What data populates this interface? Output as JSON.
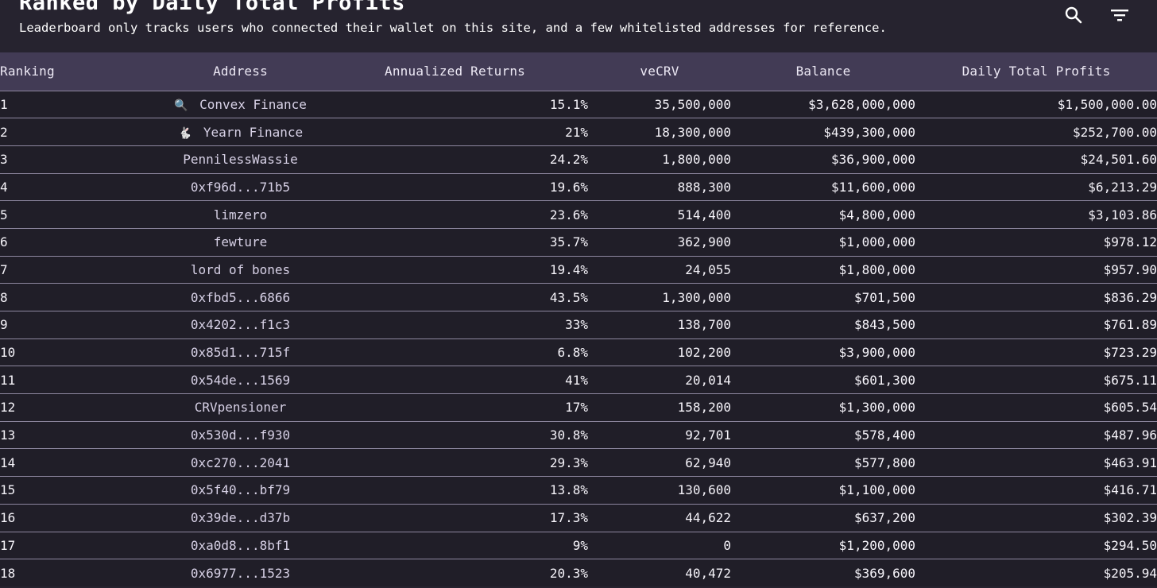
{
  "header": {
    "title": "Ranked by Daily Total Profits",
    "subtitle": "Leaderboard only tracks users who connected their wallet on this site, and a few whitelisted addresses for reference.",
    "search_icon": "search-icon",
    "filter_icon": "filter-icon"
  },
  "table": {
    "columns": [
      "Ranking",
      "Address",
      "Annualized Returns",
      "veCRV",
      "Balance",
      "Daily Total Profits"
    ],
    "rows": [
      {
        "rank": "1",
        "icon": "🔍",
        "address": "Convex Finance",
        "returns": "15.1%",
        "vecrv": "35,500,000",
        "balance": "$3,628,000,000",
        "profits": "$1,500,000.00"
      },
      {
        "rank": "2",
        "icon": "🐇",
        "address": "Yearn Finance",
        "returns": "21%",
        "vecrv": "18,300,000",
        "balance": "$439,300,000",
        "profits": "$252,700.00"
      },
      {
        "rank": "3",
        "icon": "",
        "address": "PennilessWassie",
        "returns": "24.2%",
        "vecrv": "1,800,000",
        "balance": "$36,900,000",
        "profits": "$24,501.60"
      },
      {
        "rank": "4",
        "icon": "",
        "address": "0xf96d...71b5",
        "returns": "19.6%",
        "vecrv": "888,300",
        "balance": "$11,600,000",
        "profits": "$6,213.29"
      },
      {
        "rank": "5",
        "icon": "",
        "address": "limzero",
        "returns": "23.6%",
        "vecrv": "514,400",
        "balance": "$4,800,000",
        "profits": "$3,103.86"
      },
      {
        "rank": "6",
        "icon": "",
        "address": "fewture",
        "returns": "35.7%",
        "vecrv": "362,900",
        "balance": "$1,000,000",
        "profits": "$978.12"
      },
      {
        "rank": "7",
        "icon": "",
        "address": "lord of bones",
        "returns": "19.4%",
        "vecrv": "24,055",
        "balance": "$1,800,000",
        "profits": "$957.90"
      },
      {
        "rank": "8",
        "icon": "",
        "address": "0xfbd5...6866",
        "returns": "43.5%",
        "vecrv": "1,300,000",
        "balance": "$701,500",
        "profits": "$836.29"
      },
      {
        "rank": "9",
        "icon": "",
        "address": "0x4202...f1c3",
        "returns": "33%",
        "vecrv": "138,700",
        "balance": "$843,500",
        "profits": "$761.89"
      },
      {
        "rank": "10",
        "icon": "",
        "address": "0x85d1...715f",
        "returns": "6.8%",
        "vecrv": "102,200",
        "balance": "$3,900,000",
        "profits": "$723.29"
      },
      {
        "rank": "11",
        "icon": "",
        "address": "0x54de...1569",
        "returns": "41%",
        "vecrv": "20,014",
        "balance": "$601,300",
        "profits": "$675.11"
      },
      {
        "rank": "12",
        "icon": "",
        "address": "CRVpensioner",
        "returns": "17%",
        "vecrv": "158,200",
        "balance": "$1,300,000",
        "profits": "$605.54"
      },
      {
        "rank": "13",
        "icon": "",
        "address": "0x530d...f930",
        "returns": "30.8%",
        "vecrv": "92,701",
        "balance": "$578,400",
        "profits": "$487.96"
      },
      {
        "rank": "14",
        "icon": "",
        "address": "0xc270...2041",
        "returns": "29.3%",
        "vecrv": "62,940",
        "balance": "$577,800",
        "profits": "$463.91"
      },
      {
        "rank": "15",
        "icon": "",
        "address": "0x5f40...bf79",
        "returns": "13.8%",
        "vecrv": "130,600",
        "balance": "$1,100,000",
        "profits": "$416.71"
      },
      {
        "rank": "16",
        "icon": "",
        "address": "0x39de...d37b",
        "returns": "17.3%",
        "vecrv": "44,622",
        "balance": "$637,200",
        "profits": "$302.39"
      },
      {
        "rank": "17",
        "icon": "",
        "address": "0xa0d8...8bf1",
        "returns": "9%",
        "vecrv": "0",
        "balance": "$1,200,000",
        "profits": "$294.50"
      },
      {
        "rank": "18",
        "icon": "",
        "address": "0x6977...1523",
        "returns": "20.3%",
        "vecrv": "40,472",
        "balance": "$369,600",
        "profits": "$205.94"
      }
    ]
  }
}
